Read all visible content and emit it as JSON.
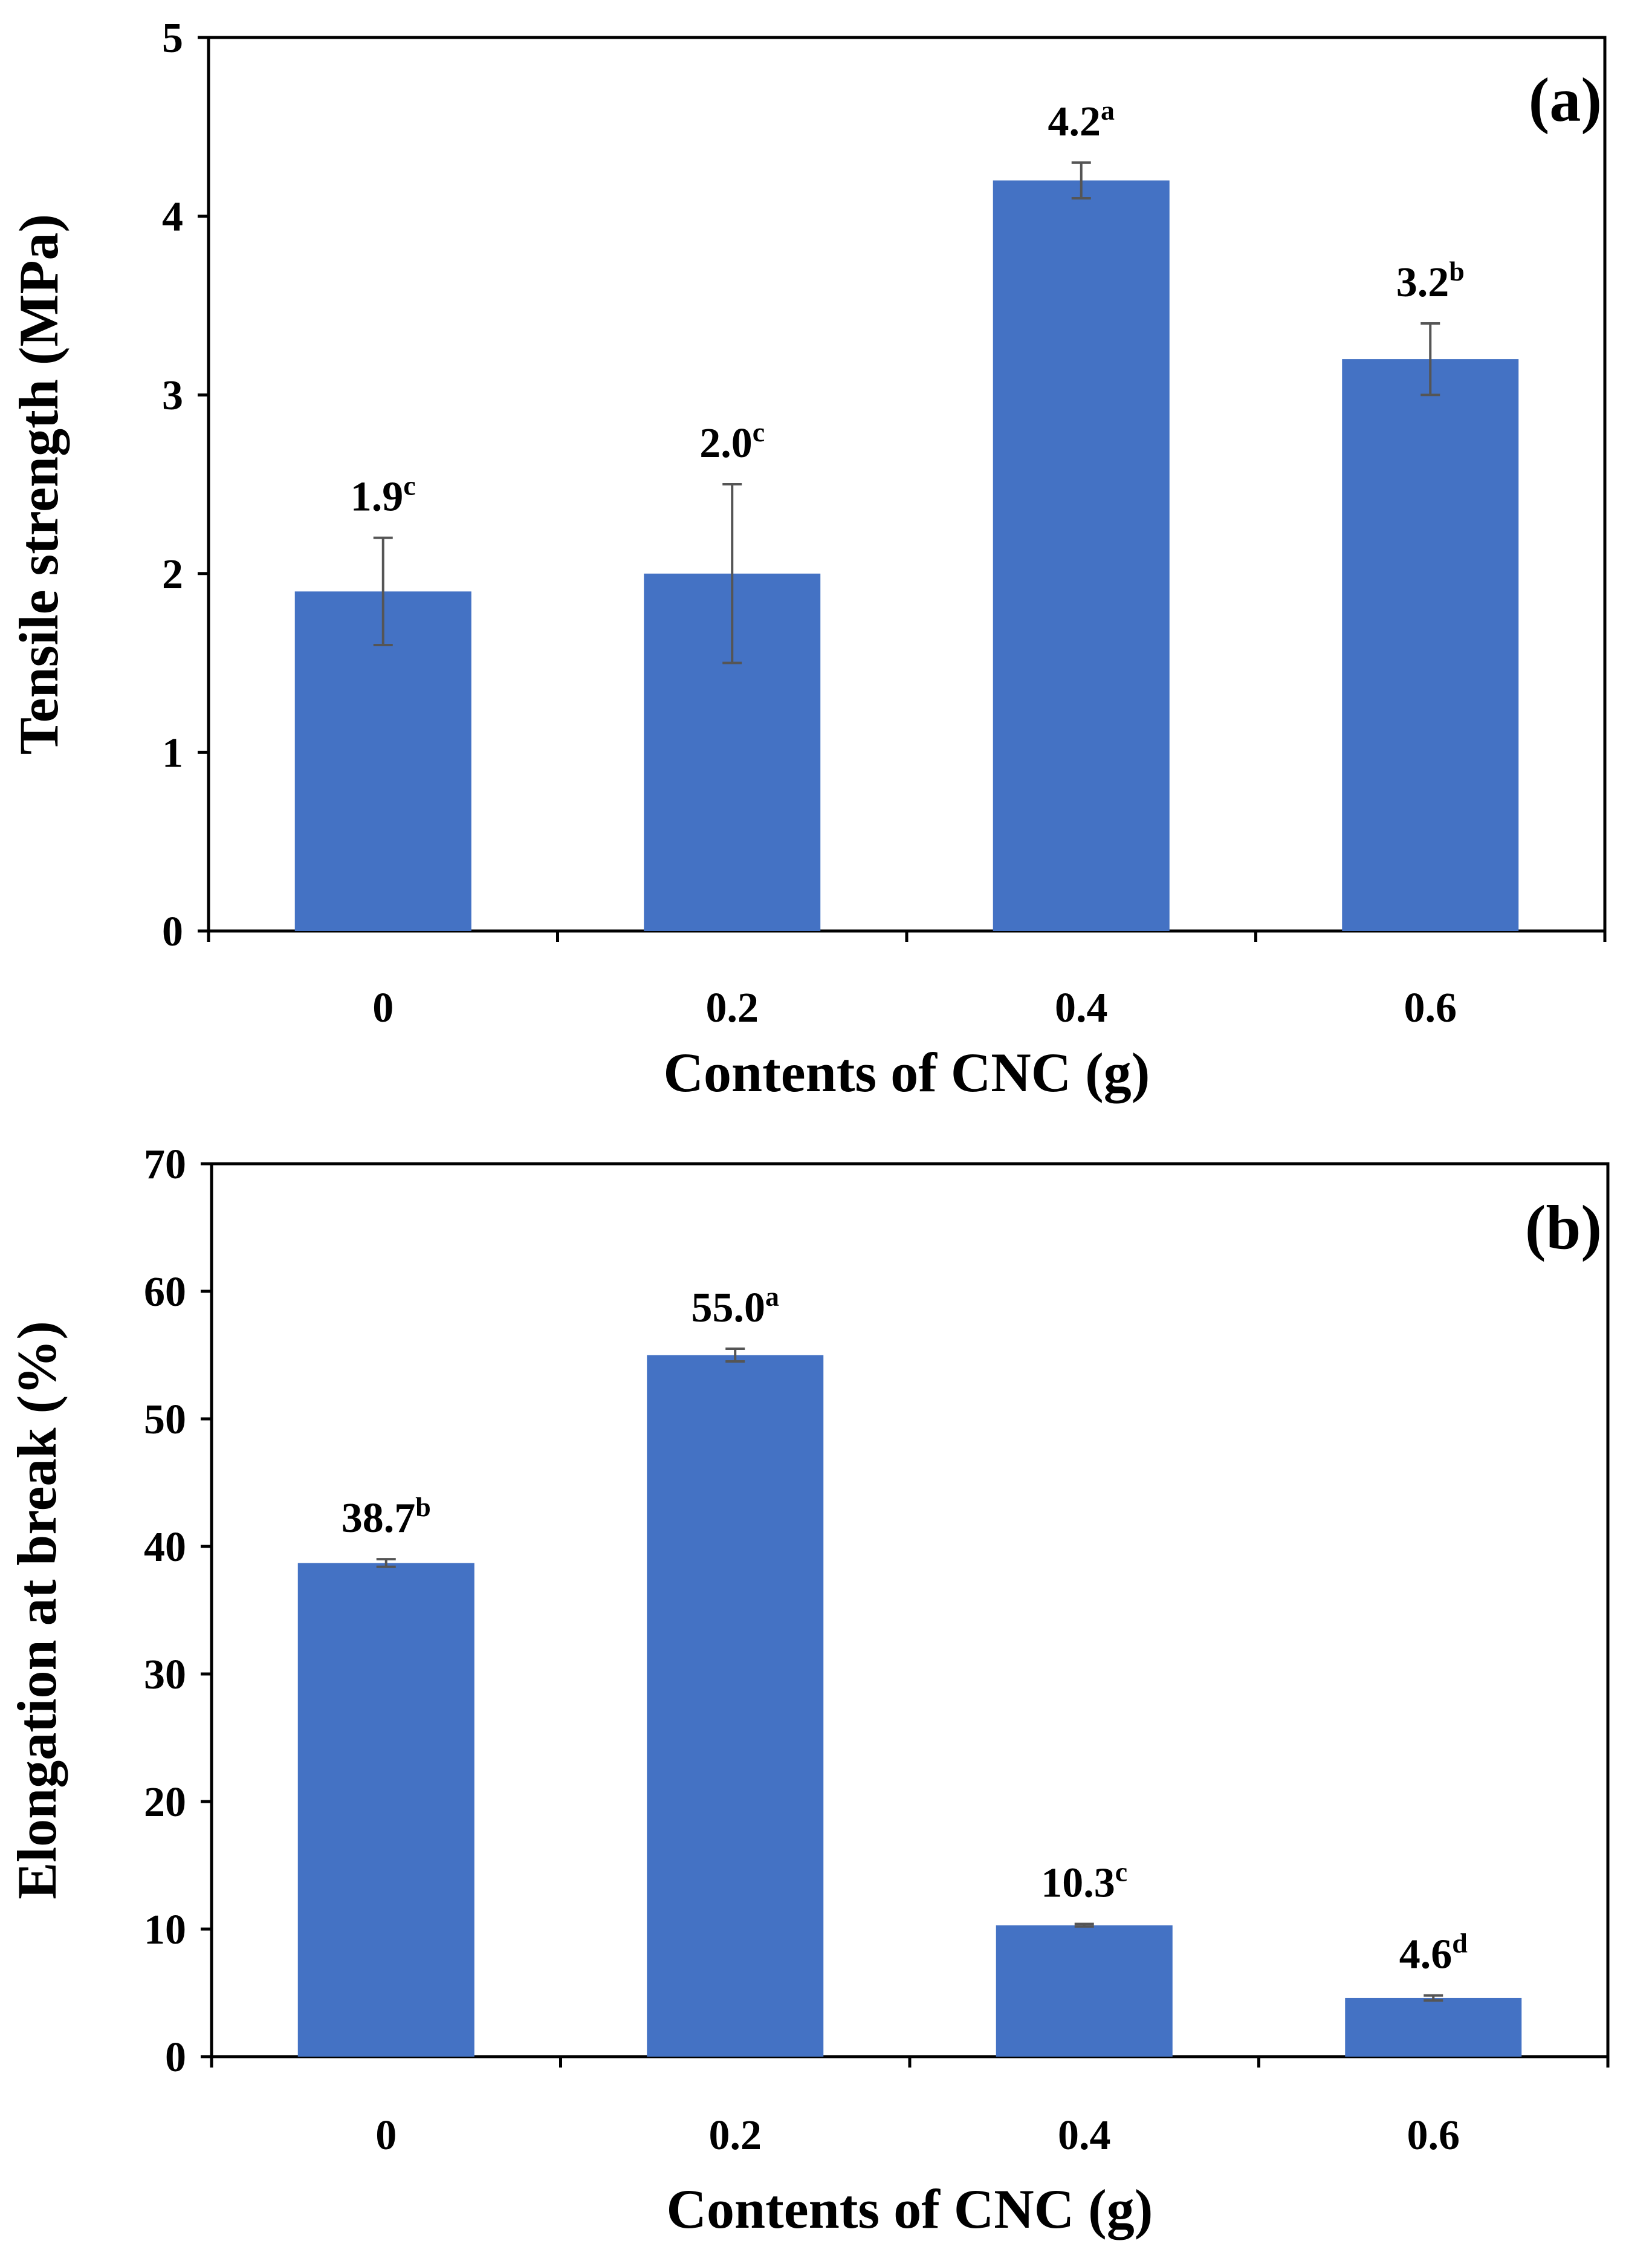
{
  "chart_data": [
    {
      "type": "bar",
      "panel_label": "(a)",
      "categories": [
        "0",
        "0.2",
        "0.4",
        "0.6"
      ],
      "xlabel": "Contents of CNC (g)",
      "ylabel": "Tensile strength (MPa)",
      "ylim": [
        0,
        5
      ],
      "yticks": [
        "0",
        "1",
        "2",
        "3",
        "4",
        "5"
      ],
      "grid": false,
      "bar_color": "#4472c4",
      "values": [
        1.9,
        2.0,
        4.2,
        3.2
      ],
      "error": [
        0.3,
        0.5,
        0.1,
        0.2
      ],
      "data_labels": [
        "1.9",
        "2.0",
        "4.2",
        "3.2"
      ],
      "significance": [
        "c",
        "c",
        "a",
        "b"
      ]
    },
    {
      "type": "bar",
      "panel_label": "(b)",
      "categories": [
        "0",
        "0.2",
        "0.4",
        "0.6"
      ],
      "xlabel": "Contents of CNC (g)",
      "ylabel": "Elongation at break (%)",
      "ylim": [
        0,
        70
      ],
      "yticks": [
        "0",
        "10",
        "20",
        "30",
        "40",
        "50",
        "60",
        "70"
      ],
      "grid": false,
      "bar_color": "#4472c4",
      "values": [
        38.7,
        55.0,
        10.3,
        4.6
      ],
      "error": [
        0.3,
        0.5,
        0.1,
        0.2
      ],
      "data_labels": [
        "38.7",
        "55.0",
        "10.3",
        "4.6"
      ],
      "significance": [
        "b",
        "a",
        "c",
        "d"
      ]
    }
  ]
}
